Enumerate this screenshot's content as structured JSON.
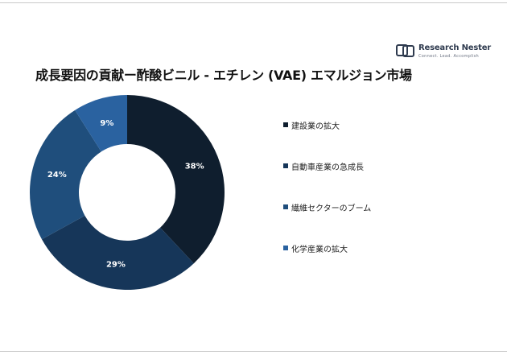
{
  "brand": {
    "name": "Research Nester",
    "tagline": "Connect. Lead. Accomplish"
  },
  "title": "成長要因の貢献ー酢酸ビニル - エチレン (VAE) エマルジョン市場",
  "chart_data": {
    "type": "pie",
    "variant": "donut",
    "categories": [
      "建設業の拡大",
      "自動車産業の急成長",
      "繊維セクターのブーム",
      "化学産業の拡大"
    ],
    "values": [
      38,
      29,
      24,
      9
    ],
    "labels": [
      "38%",
      "29%",
      "24%",
      "9%"
    ],
    "colors": [
      "#0f1e2e",
      "#163659",
      "#1f4e7c",
      "#2a62a0"
    ],
    "label_color": "#ffffff",
    "legend_position": "right"
  }
}
